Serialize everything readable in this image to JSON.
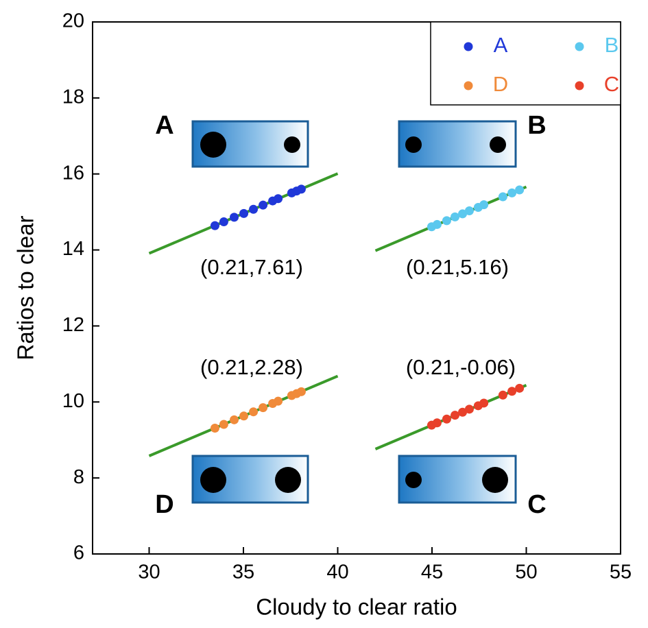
{
  "chart_data": {
    "type": "scatter",
    "x_label": "Cloudy to clear ratio",
    "y_label": "Ratios to clear",
    "xlim": [
      27,
      55
    ],
    "ylim": [
      6,
      20
    ],
    "xticks": [
      30,
      35,
      40,
      45,
      50,
      55
    ],
    "yticks": [
      6,
      8,
      10,
      12,
      14,
      16,
      18,
      20
    ],
    "grid": false,
    "legend": "upper right",
    "fit_color": "#3a9a2a",
    "series": [
      {
        "name": "A",
        "color": "#2038d8",
        "x": [
          33.49,
          33.96,
          34.51,
          35.02,
          35.53,
          36.04,
          36.55,
          36.84,
          37.56,
          37.82,
          38.07
        ],
        "values": [
          14.64,
          14.74,
          14.86,
          14.96,
          15.07,
          15.18,
          15.29,
          15.35,
          15.5,
          15.55,
          15.6
        ],
        "fit_x": [
          30,
          40
        ],
        "fit_y": [
          13.91,
          16.01
        ]
      },
      {
        "name": "B",
        "color": "#5bc8ee",
        "x": [
          44.98,
          45.27,
          45.78,
          46.22,
          46.62,
          46.98,
          47.45,
          47.75,
          48.76,
          49.24,
          49.64
        ],
        "values": [
          14.61,
          14.67,
          14.77,
          14.87,
          14.95,
          15.03,
          15.12,
          15.19,
          15.4,
          15.5,
          15.58
        ],
        "fit_x": [
          42,
          50
        ],
        "fit_y": [
          13.98,
          15.66
        ]
      },
      {
        "name": "D",
        "color": "#f08a3a",
        "x": [
          33.49,
          33.96,
          34.51,
          35.02,
          35.53,
          36.04,
          36.55,
          36.84,
          37.56,
          37.82,
          38.07
        ],
        "values": [
          9.31,
          9.41,
          9.53,
          9.63,
          9.74,
          9.85,
          9.96,
          10.02,
          10.17,
          10.22,
          10.27
        ],
        "fit_x": [
          30,
          40
        ],
        "fit_y": [
          8.58,
          10.68
        ]
      },
      {
        "name": "C",
        "color": "#e8402a",
        "x": [
          44.98,
          45.27,
          45.78,
          46.22,
          46.62,
          46.98,
          47.45,
          47.75,
          48.76,
          49.24,
          49.64
        ],
        "values": [
          9.39,
          9.45,
          9.55,
          9.65,
          9.73,
          9.81,
          9.9,
          9.97,
          10.18,
          10.28,
          10.36
        ],
        "fit_x": [
          42,
          50
        ],
        "fit_y": [
          8.76,
          10.44
        ]
      }
    ],
    "annotations": [
      "(0.21,7.61)",
      "(0.21,5.16)",
      "(0.21,2.28)",
      "(0.21,-0.06)"
    ],
    "panel_labels": [
      "A",
      "B",
      "D",
      "C"
    ]
  }
}
